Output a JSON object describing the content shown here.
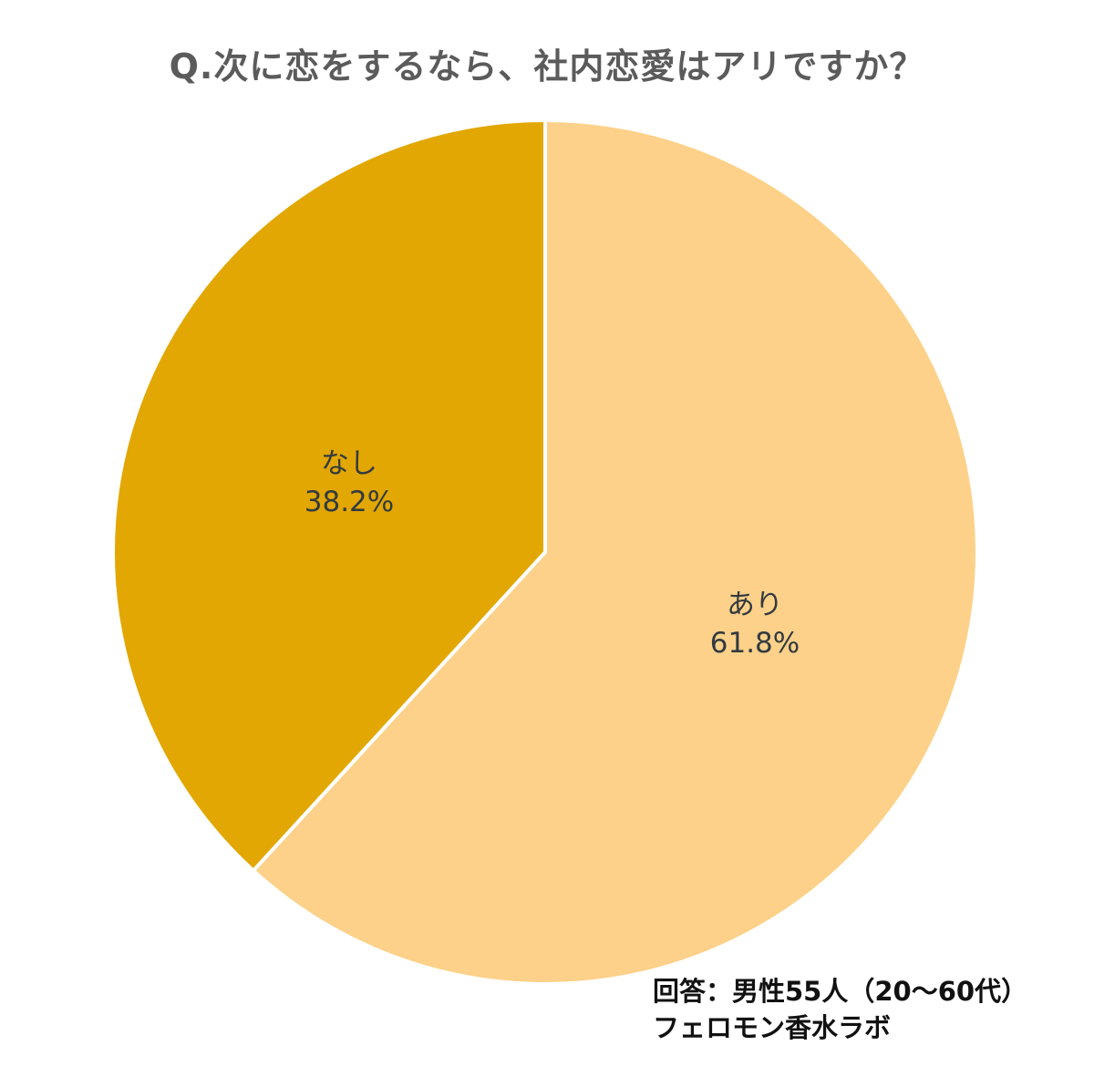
{
  "title": "Q.次に恋をするなら、社内恋愛はアリですか？",
  "chart_data": {
    "type": "pie",
    "title": "Q.次に恋をするなら、社内恋愛はアリですか？",
    "categories": [
      "あり",
      "なし"
    ],
    "values": [
      61.8,
      38.2
    ],
    "colors": [
      "#fdd189",
      "#e2a702"
    ],
    "labels": [
      "61.8%",
      "38.2%"
    ],
    "start_angle": "top, あり clockwise",
    "legend": "none (labels inside slices)"
  },
  "slices": {
    "ari": {
      "name": "あり",
      "pct": "61.8%"
    },
    "nashi": {
      "name": "なし",
      "pct": "38.2%"
    }
  },
  "source": {
    "line1": "回答：男性55人（20～60代）",
    "line2": "フェロモン香水ラボ"
  }
}
